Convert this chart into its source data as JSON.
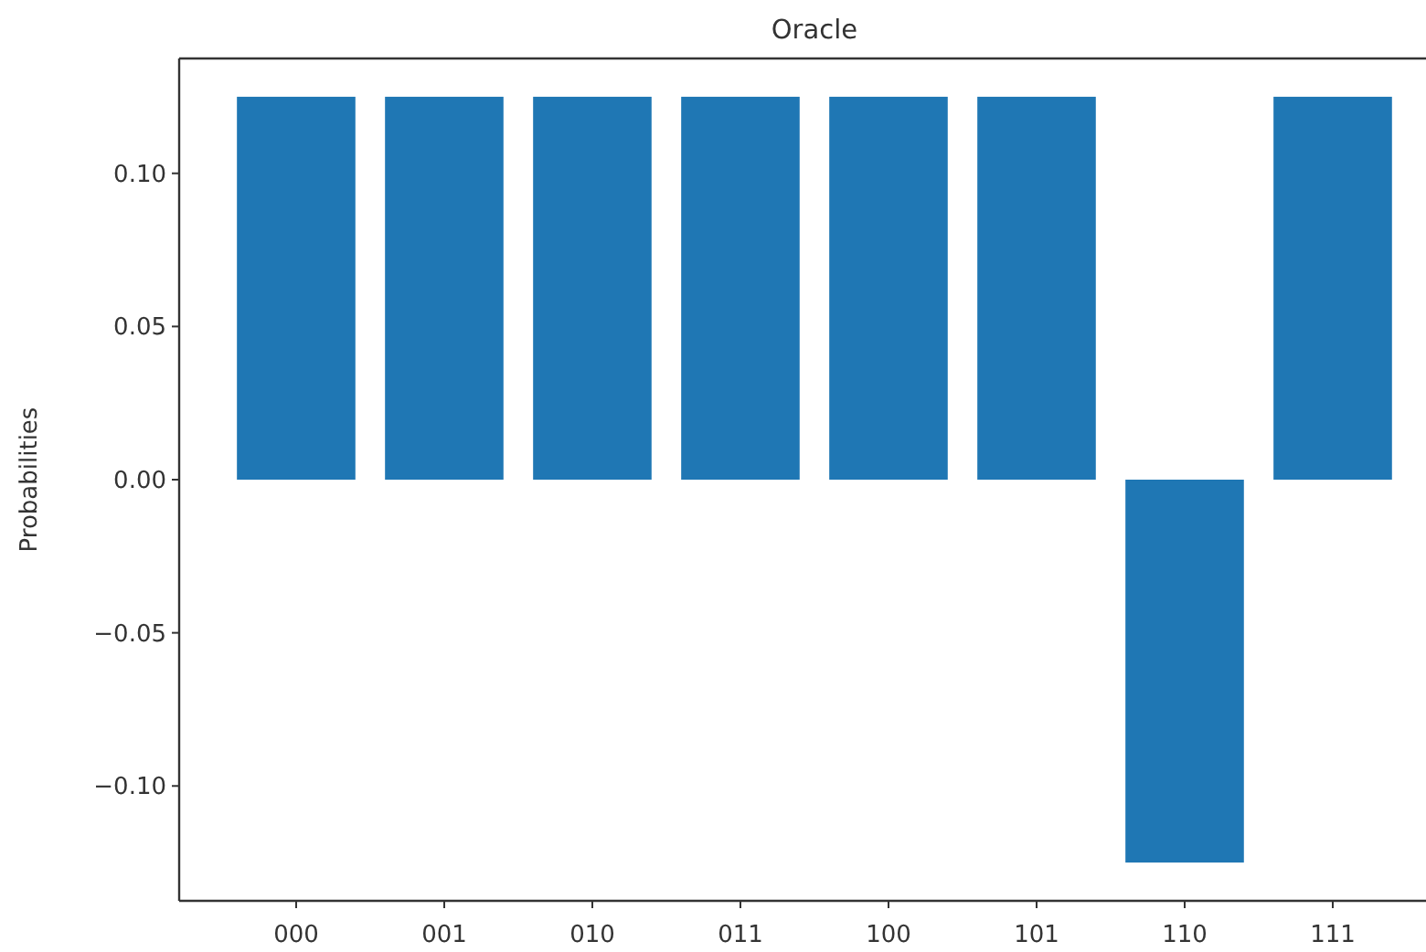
{
  "chart_data": {
    "type": "bar",
    "title": "Oracle",
    "ylabel": "Probabilities",
    "categories": [
      "000",
      "001",
      "010",
      "011",
      "100",
      "101",
      "110",
      "111"
    ],
    "values": [
      0.125,
      0.125,
      0.125,
      0.125,
      0.125,
      0.125,
      -0.125,
      0.125
    ],
    "color": "#1f77b4",
    "ylim": [
      -0.1375,
      0.1375
    ],
    "yticks": [
      {
        "value": -0.1,
        "label": "−0.10"
      },
      {
        "value": -0.05,
        "label": "−0.05"
      },
      {
        "value": 0,
        "label": "0.00"
      },
      {
        "value": 0.05,
        "label": "0.05"
      },
      {
        "value": 0.1,
        "label": "0.10"
      }
    ]
  }
}
